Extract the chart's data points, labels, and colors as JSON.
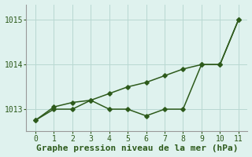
{
  "xlabel": "Graphe pression niveau de la mer (hPa)",
  "x": [
    0,
    1,
    2,
    3,
    4,
    5,
    6,
    7,
    8,
    9,
    10,
    11
  ],
  "y_actual": [
    1012.75,
    1013.0,
    1013.0,
    1013.2,
    1013.0,
    1013.0,
    1012.85,
    1013.0,
    1013.0,
    1014.0,
    1014.0,
    1015.0
  ],
  "y_trend": [
    1012.75,
    1013.05,
    1013.15,
    1013.2,
    1013.35,
    1013.5,
    1013.6,
    1013.75,
    1013.9,
    1014.0,
    1014.0,
    1015.0
  ],
  "line_color": "#2d5a1b",
  "bg_color": "#dff2ee",
  "grid_color": "#b8d8d2",
  "ylim_min": 1012.5,
  "ylim_max": 1015.35,
  "yticks": [
    1013,
    1014,
    1015
  ],
  "xticks": [
    0,
    1,
    2,
    3,
    4,
    5,
    6,
    7,
    8,
    9,
    10,
    11
  ],
  "xlabel_fontsize": 8.0,
  "tick_fontsize": 7.0,
  "line_width": 1.1,
  "marker": "D",
  "marker_size": 2.8
}
